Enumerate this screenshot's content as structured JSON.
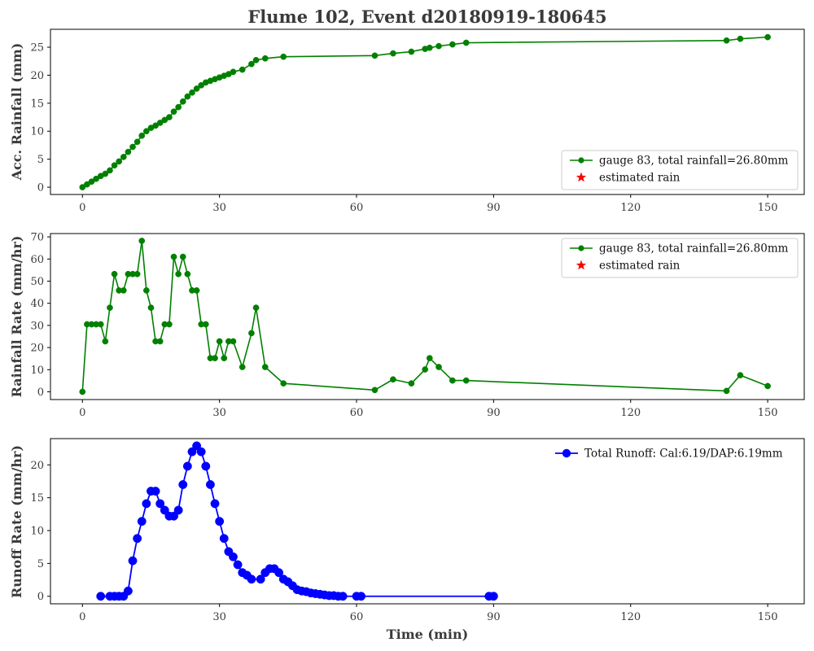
{
  "colors": {
    "green": "#008000",
    "blue": "#0000ff",
    "red": "#ff0000",
    "axis": "#000000",
    "text": "#3a3a3a"
  },
  "chart_data": [
    {
      "type": "line",
      "title": "Flume 102, Event d20180919-180645",
      "xlabel": "",
      "ylabel": "Acc. Rainfall (mm)",
      "xlim": [
        -7,
        158
      ],
      "ylim": [
        -1.3,
        28.2
      ],
      "xticks": [
        0,
        30,
        60,
        90,
        120,
        150
      ],
      "yticks": [
        0,
        5,
        10,
        15,
        20,
        25
      ],
      "legend_position": "lower-right",
      "legend": [
        {
          "label": "gauge 83, total rainfall=26.80mm",
          "marker": "circle",
          "color": "#008000"
        },
        {
          "label": "estimated rain",
          "marker": "star",
          "color": "#ff0000"
        }
      ],
      "series": [
        {
          "name": "gauge 83, total rainfall=26.80mm",
          "color": "#008000",
          "x": [
            0,
            1,
            2,
            3,
            4,
            5,
            6,
            7,
            8,
            9,
            10,
            11,
            12,
            13,
            14,
            15,
            16,
            17,
            18,
            19,
            20,
            21,
            22,
            23,
            24,
            25,
            26,
            27,
            28,
            29,
            30,
            31,
            32,
            33,
            35,
            37,
            38,
            40,
            44,
            64,
            68,
            72,
            75,
            76,
            78,
            81,
            84,
            141,
            144,
            150
          ],
          "y": [
            0.0,
            0.5,
            1.0,
            1.5,
            2.0,
            2.4,
            3.0,
            3.9,
            4.6,
            5.4,
            6.3,
            7.2,
            8.1,
            9.2,
            10.0,
            10.6,
            11.0,
            11.5,
            12.0,
            12.5,
            13.5,
            14.3,
            15.3,
            16.2,
            16.9,
            17.6,
            18.2,
            18.7,
            19.0,
            19.3,
            19.6,
            19.9,
            20.2,
            20.6,
            21.0,
            22.0,
            22.7,
            23.0,
            23.3,
            23.5,
            23.9,
            24.2,
            24.7,
            24.9,
            25.2,
            25.5,
            25.8,
            26.2,
            26.5,
            26.8
          ]
        },
        {
          "name": "estimated rain",
          "color": "#ff0000",
          "x": [],
          "y": []
        }
      ]
    },
    {
      "type": "line",
      "title": "",
      "xlabel": "",
      "ylabel": "Rainfall Rate (mm/hr)",
      "xlim": [
        -7,
        158
      ],
      "ylim": [
        -3.5,
        71.5
      ],
      "xticks": [
        0,
        30,
        60,
        90,
        120,
        150
      ],
      "yticks": [
        0,
        10,
        20,
        30,
        40,
        50,
        60,
        70
      ],
      "legend_position": "upper-right",
      "legend": [
        {
          "label": "gauge 83, total rainfall=26.80mm",
          "marker": "circle",
          "color": "#008000"
        },
        {
          "label": "estimated rain",
          "marker": "star",
          "color": "#ff0000"
        }
      ],
      "series": [
        {
          "name": "gauge 83, total rainfall=26.80mm",
          "color": "#008000",
          "x": [
            0,
            1,
            2,
            3,
            4,
            5,
            6,
            7,
            8,
            9,
            10,
            11,
            12,
            13,
            14,
            15,
            16,
            17,
            18,
            19,
            20,
            21,
            22,
            23,
            24,
            25,
            26,
            27,
            28,
            29,
            30,
            31,
            32,
            33,
            35,
            37,
            38,
            40,
            44,
            64,
            68,
            72,
            75,
            76,
            78,
            81,
            84,
            141,
            144,
            150
          ],
          "y": [
            0,
            30.5,
            30.5,
            30.5,
            30.5,
            22.8,
            38,
            53.2,
            45.8,
            45.8,
            53.2,
            53.2,
            53.2,
            68.2,
            45.8,
            38,
            22.8,
            22.8,
            30.5,
            30.5,
            61,
            53.2,
            61,
            53.2,
            45.8,
            45.8,
            30.5,
            30.5,
            15.2,
            15.2,
            22.8,
            15.2,
            22.8,
            22.8,
            11.2,
            26.5,
            38,
            11.2,
            3.8,
            0.8,
            5.6,
            3.8,
            10.1,
            15.2,
            11.2,
            5.1,
            5.1,
            0.4,
            7.5,
            2.6
          ]
        },
        {
          "name": "estimated rain",
          "color": "#ff0000",
          "x": [],
          "y": []
        }
      ]
    },
    {
      "type": "line",
      "title": "",
      "xlabel": "Time (min)",
      "ylabel": "Runoff Rate (mm/hr)",
      "xlim": [
        -7,
        158
      ],
      "ylim": [
        -1.15,
        24.0
      ],
      "xticks": [
        0,
        30,
        60,
        90,
        120,
        150
      ],
      "yticks": [
        0,
        5,
        10,
        15,
        20
      ],
      "legend_position": "upper-right",
      "legend": [
        {
          "label": "Total Runoff: Cal:6.19/DAP:6.19mm",
          "marker": "circle",
          "color": "#0000ff"
        }
      ],
      "series": [
        {
          "name": "Total Runoff: Cal:6.19/DAP:6.19mm",
          "color": "#0000ff",
          "x": [
            4,
            6,
            7,
            8,
            9,
            10,
            11,
            12,
            13,
            14,
            15,
            16,
            17,
            18,
            19,
            20,
            21,
            22,
            23,
            24,
            25,
            26,
            27,
            28,
            29,
            30,
            31,
            32,
            33,
            34,
            35,
            36,
            37,
            39,
            40,
            41,
            42,
            43,
            44,
            45,
            46,
            47,
            48,
            49,
            50,
            51,
            52,
            53,
            54,
            55,
            56,
            57,
            60,
            61,
            89,
            90
          ],
          "y": [
            0,
            0,
            0,
            0,
            0,
            0.8,
            5.4,
            8.8,
            11.4,
            14.1,
            16.0,
            16.0,
            14.1,
            13.1,
            12.2,
            12.2,
            13.1,
            17.0,
            19.8,
            22.0,
            22.9,
            22.0,
            19.8,
            17.0,
            14.1,
            11.4,
            8.8,
            6.8,
            6.0,
            4.8,
            3.6,
            3.2,
            2.6,
            2.6,
            3.6,
            4.2,
            4.2,
            3.6,
            2.6,
            2.2,
            1.6,
            1.0,
            0.8,
            0.7,
            0.5,
            0.4,
            0.3,
            0.2,
            0.1,
            0.1,
            0,
            0,
            0,
            0,
            0,
            0
          ]
        }
      ]
    }
  ]
}
